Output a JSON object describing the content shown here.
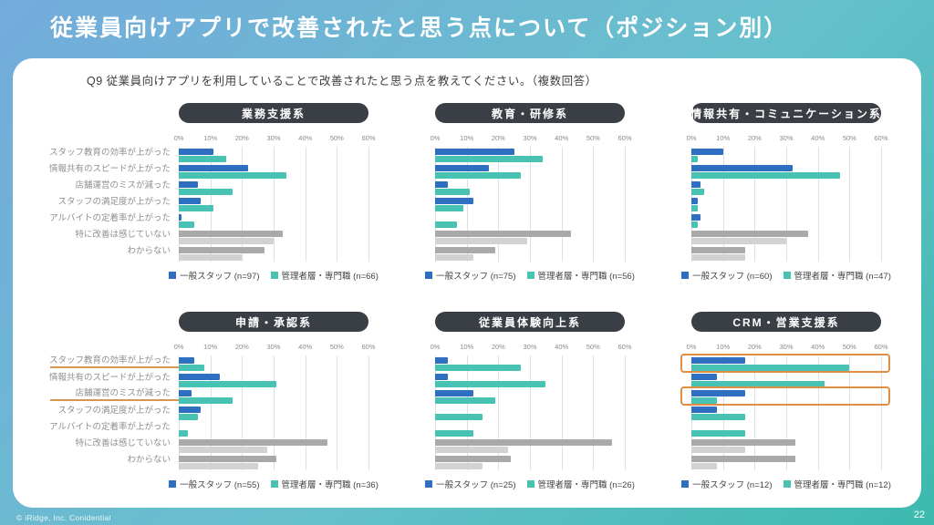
{
  "slide": {
    "title": "従業員向けアプリで改善されたと思う点について（ポジション別）",
    "question": "Q9 従業員向けアプリを利用していることで改善されたと思う点を教えてください。（複数回答）",
    "footer": "© iRidge, Inc. Conidential",
    "page_number": "22"
  },
  "colors": {
    "series_general": "#2e6fc2",
    "series_manager": "#48c2b2",
    "gray_dark": "#a9a9a9",
    "gray_light": "#d2d2d2",
    "pill_bg": "#3a3e45",
    "highlight_orange": "#e08e44",
    "underline_orange": "#d8964f",
    "bg_top": "#74abdc",
    "bg_bottom": "#3cbaae"
  },
  "axis": {
    "ticks": [
      "0%",
      "10%",
      "20%",
      "30%",
      "40%",
      "50%",
      "60%"
    ],
    "max": 60
  },
  "categories": [
    "スタッフ教育の効率が上がった",
    "情報共有のスピードが上がった",
    "店舗運営のミスが減った",
    "スタッフの満足度が上がった",
    "アルバイトの定着率が上がった",
    "特に改善は感じていない",
    "わからない"
  ],
  "gray_categories": [
    5,
    6
  ],
  "chart_data": [
    {
      "type": "bar",
      "title": "業務支援系",
      "show_category_labels": true,
      "xlim": [
        0,
        60
      ],
      "legend": [
        "一般スタッフ (n=97)",
        "管理者層・専門職 (n=66)"
      ],
      "series": [
        {
          "name": "一般スタッフ (n=97)",
          "values": [
            11,
            22,
            6,
            7,
            1,
            33,
            27
          ]
        },
        {
          "name": "管理者層・専門職 (n=66)",
          "values": [
            15,
            34,
            17,
            11,
            5,
            30,
            20
          ]
        }
      ]
    },
    {
      "type": "bar",
      "title": "教育・研修系",
      "show_category_labels": false,
      "xlim": [
        0,
        60
      ],
      "legend": [
        "一般スタッフ (n=75)",
        "管理者層・専門職 (n=56)"
      ],
      "series": [
        {
          "name": "一般スタッフ (n=75)",
          "values": [
            25,
            17,
            4,
            12,
            0,
            43,
            19
          ]
        },
        {
          "name": "管理者層・専門職 (n=56)",
          "values": [
            34,
            27,
            11,
            9,
            7,
            29,
            12
          ]
        }
      ]
    },
    {
      "type": "bar",
      "title": "情報共有・コミュニケーション系",
      "show_category_labels": false,
      "xlim": [
        0,
        60
      ],
      "legend": [
        "一般スタッフ (n=60)",
        "管理者層・専門職 (n=47)"
      ],
      "series": [
        {
          "name": "一般スタッフ (n=60)",
          "values": [
            10,
            32,
            3,
            2,
            3,
            37,
            17
          ]
        },
        {
          "name": "管理者層・専門職 (n=47)",
          "values": [
            2,
            47,
            4,
            2,
            2,
            30,
            17
          ]
        }
      ]
    },
    {
      "type": "bar",
      "title": "申請・承認系",
      "show_category_labels": true,
      "xlim": [
        0,
        60
      ],
      "underline_labels": [
        0,
        2
      ],
      "legend": [
        "一般スタッフ (n=55)",
        "管理者層・専門職 (n=36)"
      ],
      "series": [
        {
          "name": "一般スタッフ (n=55)",
          "values": [
            5,
            13,
            4,
            7,
            0,
            47,
            31
          ]
        },
        {
          "name": "管理者層・専門職 (n=36)",
          "values": [
            8,
            31,
            17,
            6,
            3,
            28,
            25
          ]
        }
      ]
    },
    {
      "type": "bar",
      "title": "従業員体験向上系",
      "show_category_labels": false,
      "xlim": [
        0,
        60
      ],
      "legend": [
        "一般スタッフ (n=25)",
        "管理者層・専門職 (n=26)"
      ],
      "series": [
        {
          "name": "一般スタッフ (n=25)",
          "values": [
            4,
            4,
            12,
            0,
            0,
            56,
            24
          ]
        },
        {
          "name": "管理者層・専門職 (n=26)",
          "values": [
            27,
            35,
            19,
            15,
            12,
            23,
            15
          ]
        }
      ]
    },
    {
      "type": "bar",
      "title": "CRM・営業支援系",
      "show_category_labels": false,
      "xlim": [
        0,
        60
      ],
      "box_rows": [
        0,
        2
      ],
      "legend": [
        "一般スタッフ (n=12)",
        "管理者層・専門職 (n=12)"
      ],
      "series": [
        {
          "name": "一般スタッフ (n=12)",
          "values": [
            17,
            8,
            17,
            8,
            0,
            33,
            33
          ]
        },
        {
          "name": "管理者層・専門職 (n=12)",
          "values": [
            50,
            42,
            8,
            17,
            17,
            17,
            8
          ]
        }
      ]
    }
  ]
}
